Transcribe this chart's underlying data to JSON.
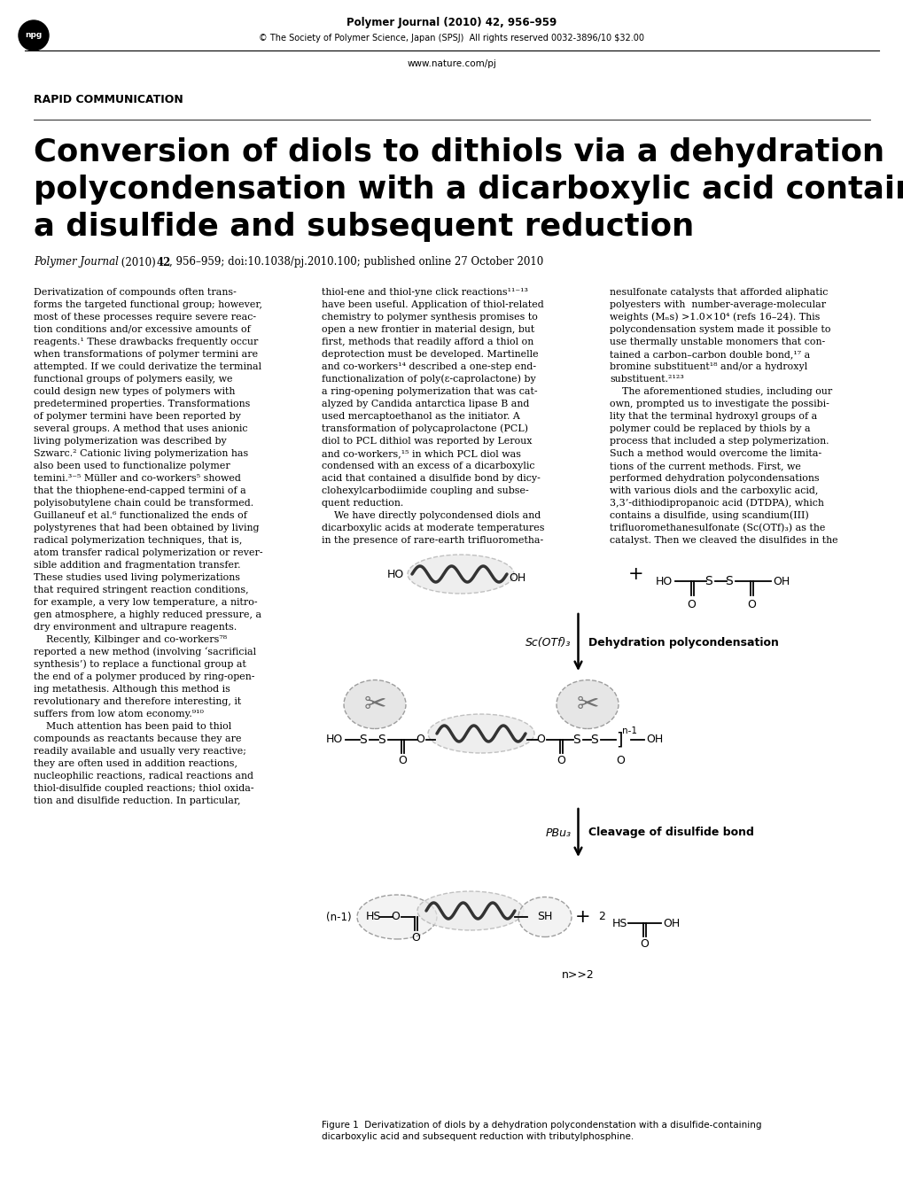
{
  "header_journal": "Polymer Journal (2010) 42, 956–959",
  "header_copyright": "© The Society of Polymer Science, Japan (SPSJ)  All rights reserved 0032-3896/10 $32.00",
  "header_url": "www.nature.com/pj",
  "section_label": "RAPID COMMUNICATION",
  "title_line1": "Conversion of diols to dithiols via a dehydration",
  "title_line2": "polycondensation with a dicarboxylic acid containing",
  "title_line3": "a disulfide and subsequent reduction",
  "body_col1_lines": [
    "Derivatization of compounds often trans-",
    "forms the targeted functional group; however,",
    "most of these processes require severe reac-",
    "tion conditions and/or excessive amounts of",
    "reagents.¹ These drawbacks frequently occur",
    "when transformations of polymer termini are",
    "attempted. If we could derivatize the terminal",
    "functional groups of polymers easily, we",
    "could design new types of polymers with",
    "predetermined properties. Transformations",
    "of polymer termini have been reported by",
    "several groups. A method that uses anionic",
    "living polymerization was described by",
    "Szwarc.² Cationic living polymerization has",
    "also been used to functionalize polymer",
    "temini.³⁻⁵ Müller and co-workers⁵ showed",
    "that the thiophene-end-capped termini of a",
    "polyisobutylene chain could be transformed.",
    "Guillaneuf et al.⁶ functionalized the ends of",
    "polystyrenes that had been obtained by living",
    "radical polymerization techniques, that is,",
    "atom transfer radical polymerization or rever-",
    "sible addition and fragmentation transfer.",
    "These studies used living polymerizations",
    "that required stringent reaction conditions,",
    "for example, a very low temperature, a nitro-",
    "gen atmosphere, a highly reduced pressure, a",
    "dry environment and ultrapure reagents.",
    "    Recently, Kilbinger and co-workers⁷⁸",
    "reported a new method (involving ‘sacrificial",
    "synthesis’) to replace a functional group at",
    "the end of a polymer produced by ring-open-",
    "ing metathesis. Although this method is",
    "revolutionary and therefore interesting, it",
    "suffers from low atom economy.⁹¹⁰",
    "    Much attention has been paid to thiol",
    "compounds as reactants because they are",
    "readily available and usually very reactive;",
    "they are often used in addition reactions,",
    "nucleophilic reactions, radical reactions and",
    "thiol-disulfide coupled reactions; thiol oxida-",
    "tion and disulfide reduction. In particular,"
  ],
  "body_col2_lines": [
    "thiol-ene and thiol-yne click reactions¹¹⁻¹³",
    "have been useful. Application of thiol-related",
    "chemistry to polymer synthesis promises to",
    "open a new frontier in material design, but",
    "first, methods that readily afford a thiol on",
    "deprotection must be developed. Martinelle",
    "and co-workers¹⁴ described a one-step end-",
    "functionalization of poly(ε-caprolactone) by",
    "a ring-opening polymerization that was cat-",
    "alyzed by Candida antarctica lipase B and",
    "used mercaptoethanol as the initiator. A",
    "transformation of polycaprolactone (PCL)",
    "diol to PCL dithiol was reported by Leroux",
    "and co-workers,¹⁵ in which PCL diol was",
    "condensed with an excess of a dicarboxylic",
    "acid that contained a disulfide bond by dicy-",
    "clohexylcarbodiimide coupling and subse-",
    "quent reduction.",
    "    We have directly polycondensed diols and",
    "dicarboxylic acids at moderate temperatures",
    "in the presence of rare-earth trifluorometha-"
  ],
  "body_col3_lines": [
    "nesulfonate catalysts that afforded aliphatic",
    "polyesters with  number-average-molecular",
    "weights (Mₙs) >1.0×10⁴ (refs 16–24). This",
    "polycondensation system made it possible to",
    "use thermally unstable monomers that con-",
    "tained a carbon–carbon double bond,¹⁷ a",
    "bromine substituent¹⁸ and/or a hydroxyl",
    "substituent.²¹²³",
    "    The aforementioned studies, including our",
    "own, prompted us to investigate the possibi-",
    "lity that the terminal hydroxyl groups of a",
    "polymer could be replaced by thiols by a",
    "process that included a step polymerization.",
    "Such a method would overcome the limita-",
    "tions of the current methods. First, we",
    "performed dehydration polycondensations",
    "with various diols and the carboxylic acid,",
    "3,3’-dithiodipropanoic acid (DTDPA), which",
    "contains a disulfide, using scandium(III)",
    "trifluoromethanesulfonate (Sc(OTf)₃) as the",
    "catalyst. Then we cleaved the disulfides in the"
  ],
  "figure_caption1": "Figure 1  Derivatization of diols by a dehydration polycondenstation with a disulfide-containing",
  "figure_caption2": "dicarboxylic acid and subsequent reduction with tributylphosphine.",
  "bg_color": "#ffffff"
}
